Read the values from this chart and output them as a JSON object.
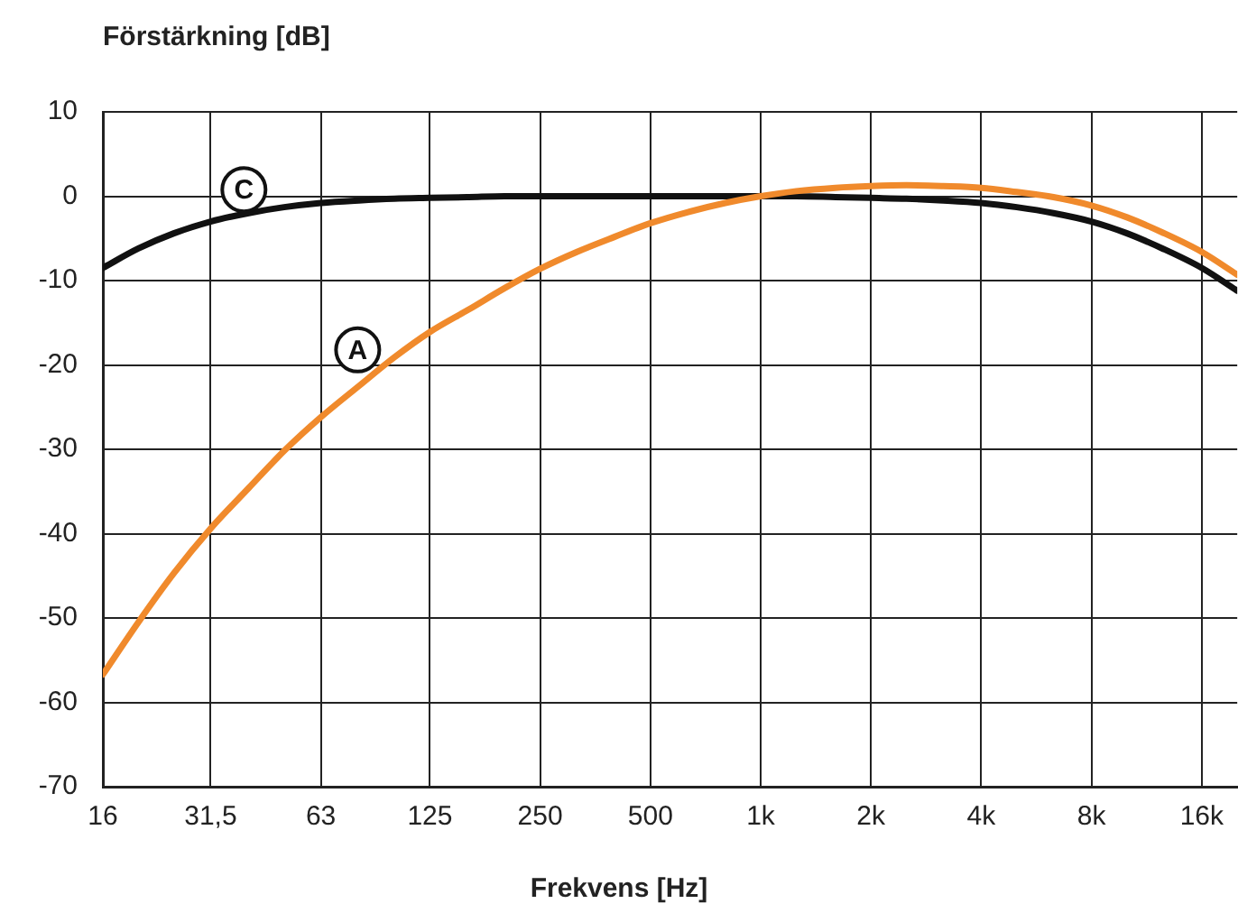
{
  "chart_data": {
    "type": "line",
    "ylabel": "Förstärkning [dB]",
    "xlabel": "Frekvens [Hz]",
    "x": [
      16,
      20,
      25,
      31.5,
      40,
      50,
      63,
      80,
      100,
      125,
      160,
      200,
      250,
      315,
      400,
      500,
      630,
      800,
      1000,
      1250,
      1600,
      2000,
      2500,
      3150,
      4000,
      5000,
      6300,
      8000,
      10000,
      12500,
      16000,
      20000
    ],
    "series": [
      {
        "color": "#f08a2c",
        "values": [
          -56.7,
          -50.5,
          -44.7,
          -39.4,
          -34.6,
          -30.2,
          -26.2,
          -22.5,
          -19.1,
          -16.1,
          -13.4,
          -10.9,
          -8.6,
          -6.6,
          -4.8,
          -3.2,
          -1.9,
          -0.8,
          0,
          0.6,
          1.0,
          1.2,
          1.3,
          1.2,
          1.0,
          0.5,
          -0.1,
          -1.1,
          -2.5,
          -4.3,
          -6.6,
          -9.3
        ]
      },
      {
        "color": "#111111",
        "values": [
          -8.5,
          -6.2,
          -4.4,
          -3.0,
          -2.0,
          -1.3,
          -0.8,
          -0.5,
          -0.3,
          -0.2,
          -0.1,
          0,
          0,
          0,
          0,
          0,
          0,
          0,
          0,
          0,
          -0.1,
          -0.2,
          -0.3,
          -0.5,
          -0.8,
          -1.3,
          -2.0,
          -3.0,
          -4.4,
          -6.2,
          -8.5,
          -11.2
        ]
      }
    ],
    "xlim": [
      16,
      20000
    ],
    "xticks": [
      16,
      {
        "value": 31.5,
        "label": "31,5"
      },
      63,
      125,
      250,
      500,
      {
        "value": 1000,
        "label": "1k"
      },
      {
        "value": 2000,
        "label": "2k"
      },
      {
        "value": 4000,
        "label": "4k"
      },
      {
        "value": 8000,
        "label": "8k"
      },
      {
        "value": 16000,
        "label": "16k"
      }
    ],
    "ylim": [
      -70,
      10
    ],
    "yticks": [
      -70,
      -60,
      -50,
      -40,
      -30,
      -20,
      -10,
      0,
      10
    ],
    "log": "x",
    "grid": true,
    "marker": "none",
    "line_style": "solid",
    "annotations": [
      {
        "text": "C",
        "x": 45,
        "y": -2
      },
      {
        "text": "A",
        "x": 92,
        "y": -21
      }
    ]
  }
}
